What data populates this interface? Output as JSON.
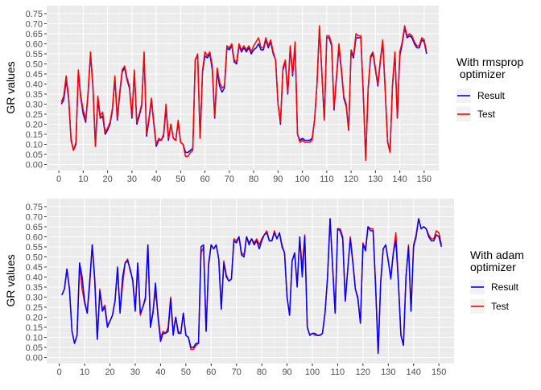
{
  "chart_data": [
    {
      "type": "line",
      "title": "",
      "xlabel": "",
      "ylabel": "GR values",
      "xlim": [
        -5,
        156
      ],
      "ylim": [
        -0.03,
        0.79
      ],
      "xticks": [
        0,
        10,
        20,
        30,
        40,
        50,
        60,
        70,
        80,
        90,
        100,
        110,
        120,
        130,
        140,
        150
      ],
      "yticks": [
        0,
        0.05,
        0.1,
        0.15,
        0.2,
        0.25,
        0.3,
        0.35,
        0.4,
        0.45,
        0.5,
        0.55,
        0.6,
        0.65,
        0.7,
        0.75
      ],
      "ytick_labels": [
        "0.00",
        "0.05",
        "0.10",
        "0.15",
        "0.20",
        "0.25",
        "0.30",
        "0.35",
        "0.40",
        "0.45",
        "0.50",
        "0.55",
        "0.60",
        "0.65",
        "0.70",
        "0.75"
      ],
      "grid": true,
      "legend": {
        "title": "With rmsprop\n optimizer",
        "position": "right"
      },
      "series": [
        {
          "name": "Result",
          "color": "#0000ff",
          "x_start": 1,
          "values": [
            0.3,
            0.32,
            0.42,
            0.33,
            0.12,
            0.07,
            0.1,
            0.46,
            0.33,
            0.25,
            0.21,
            0.35,
            0.55,
            0.38,
            0.09,
            0.32,
            0.23,
            0.24,
            0.15,
            0.17,
            0.2,
            0.27,
            0.43,
            0.22,
            0.35,
            0.46,
            0.48,
            0.42,
            0.38,
            0.23,
            0.46,
            0.2,
            0.24,
            0.29,
            0.55,
            0.14,
            0.22,
            0.32,
            0.2,
            0.09,
            0.12,
            0.12,
            0.14,
            0.28,
            0.12,
            0.2,
            0.13,
            0.12,
            0.21,
            0.11,
            0.1,
            0.06,
            0.06,
            0.07,
            0.08,
            0.52,
            0.54,
            0.13,
            0.46,
            0.54,
            0.53,
            0.55,
            0.47,
            0.23,
            0.46,
            0.39,
            0.36,
            0.38,
            0.58,
            0.57,
            0.59,
            0.51,
            0.5,
            0.59,
            0.56,
            0.58,
            0.56,
            0.58,
            0.55,
            0.57,
            0.58,
            0.6,
            0.57,
            0.57,
            0.62,
            0.58,
            0.61,
            0.55,
            0.52,
            0.3,
            0.2,
            0.47,
            0.51,
            0.35,
            0.58,
            0.44,
            0.6,
            0.15,
            0.12,
            0.13,
            0.12,
            0.12,
            0.12,
            0.13,
            0.22,
            0.4,
            0.68,
            0.45,
            0.22,
            0.63,
            0.63,
            0.59,
            0.27,
            0.43,
            0.58,
            0.47,
            0.33,
            0.29,
            0.17,
            0.56,
            0.53,
            0.63,
            0.63,
            0.63,
            0.35,
            0.03,
            0.37,
            0.53,
            0.55,
            0.47,
            0.39,
            0.51,
            0.61,
            0.37,
            0.11,
            0.07,
            0.39,
            0.55,
            0.23,
            0.54,
            0.6,
            0.68,
            0.63,
            0.64,
            0.63,
            0.6,
            0.58,
            0.58,
            0.62,
            0.61,
            0.55
          ]
        },
        {
          "name": "Test",
          "color": "#ff0000",
          "x_start": 1,
          "values": [
            0.31,
            0.34,
            0.44,
            0.34,
            0.13,
            0.07,
            0.11,
            0.47,
            0.34,
            0.27,
            0.22,
            0.36,
            0.56,
            0.39,
            0.09,
            0.34,
            0.24,
            0.26,
            0.16,
            0.18,
            0.21,
            0.28,
            0.44,
            0.23,
            0.36,
            0.47,
            0.49,
            0.43,
            0.39,
            0.24,
            0.47,
            0.21,
            0.25,
            0.3,
            0.56,
            0.15,
            0.23,
            0.33,
            0.21,
            0.1,
            0.13,
            0.12,
            0.15,
            0.3,
            0.13,
            0.2,
            0.13,
            0.12,
            0.22,
            0.11,
            0.1,
            0.04,
            0.04,
            0.06,
            0.07,
            0.52,
            0.55,
            0.13,
            0.47,
            0.56,
            0.54,
            0.56,
            0.49,
            0.24,
            0.48,
            0.41,
            0.38,
            0.39,
            0.59,
            0.58,
            0.6,
            0.52,
            0.51,
            0.6,
            0.57,
            0.59,
            0.57,
            0.59,
            0.56,
            0.59,
            0.61,
            0.63,
            0.58,
            0.58,
            0.63,
            0.59,
            0.62,
            0.56,
            0.52,
            0.3,
            0.21,
            0.48,
            0.52,
            0.36,
            0.59,
            0.45,
            0.61,
            0.15,
            0.11,
            0.12,
            0.11,
            0.11,
            0.11,
            0.12,
            0.22,
            0.4,
            0.69,
            0.46,
            0.22,
            0.64,
            0.64,
            0.6,
            0.28,
            0.44,
            0.6,
            0.48,
            0.34,
            0.3,
            0.17,
            0.57,
            0.54,
            0.65,
            0.64,
            0.64,
            0.36,
            0.02,
            0.38,
            0.54,
            0.56,
            0.48,
            0.4,
            0.52,
            0.62,
            0.38,
            0.11,
            0.06,
            0.4,
            0.56,
            0.23,
            0.56,
            0.61,
            0.69,
            0.64,
            0.65,
            0.64,
            0.61,
            0.59,
            0.59,
            0.63,
            0.62,
            0.56
          ]
        }
      ]
    },
    {
      "type": "line",
      "title": "",
      "xlabel": "",
      "ylabel": "GR values",
      "xlim": [
        -5,
        156
      ],
      "ylim": [
        -0.03,
        0.79
      ],
      "xticks": [
        0,
        10,
        20,
        30,
        40,
        50,
        60,
        70,
        80,
        90,
        100,
        110,
        120,
        130,
        140,
        150
      ],
      "yticks": [
        0,
        0.05,
        0.1,
        0.15,
        0.2,
        0.25,
        0.3,
        0.35,
        0.4,
        0.45,
        0.5,
        0.55,
        0.6,
        0.65,
        0.7,
        0.75
      ],
      "ytick_labels": [
        "0.00",
        "0.05",
        "0.10",
        "0.15",
        "0.20",
        "0.25",
        "0.30",
        "0.35",
        "0.40",
        "0.45",
        "0.50",
        "0.55",
        "0.60",
        "0.65",
        "0.70",
        "0.75"
      ],
      "grid": true,
      "legend": {
        "title": "With adam\noptimizer",
        "position": "right"
      },
      "series": [
        {
          "name": "Test",
          "color": "#ff0000",
          "x_start": 1,
          "values": [
            0.31,
            0.34,
            0.44,
            0.34,
            0.13,
            0.07,
            0.11,
            0.47,
            0.34,
            0.27,
            0.22,
            0.36,
            0.56,
            0.39,
            0.09,
            0.34,
            0.24,
            0.26,
            0.16,
            0.18,
            0.21,
            0.28,
            0.44,
            0.23,
            0.36,
            0.47,
            0.49,
            0.43,
            0.39,
            0.24,
            0.47,
            0.21,
            0.25,
            0.3,
            0.56,
            0.15,
            0.23,
            0.33,
            0.21,
            0.1,
            0.13,
            0.12,
            0.15,
            0.3,
            0.13,
            0.2,
            0.13,
            0.12,
            0.22,
            0.11,
            0.1,
            0.04,
            0.04,
            0.06,
            0.07,
            0.52,
            0.55,
            0.13,
            0.47,
            0.56,
            0.54,
            0.56,
            0.49,
            0.24,
            0.48,
            0.41,
            0.38,
            0.39,
            0.59,
            0.58,
            0.6,
            0.52,
            0.51,
            0.6,
            0.57,
            0.59,
            0.57,
            0.59,
            0.56,
            0.59,
            0.61,
            0.63,
            0.58,
            0.58,
            0.63,
            0.59,
            0.62,
            0.56,
            0.52,
            0.3,
            0.21,
            0.48,
            0.52,
            0.36,
            0.59,
            0.45,
            0.61,
            0.15,
            0.11,
            0.12,
            0.11,
            0.11,
            0.11,
            0.12,
            0.22,
            0.4,
            0.69,
            0.46,
            0.22,
            0.64,
            0.64,
            0.6,
            0.28,
            0.44,
            0.6,
            0.48,
            0.34,
            0.3,
            0.17,
            0.57,
            0.54,
            0.65,
            0.64,
            0.64,
            0.36,
            0.02,
            0.38,
            0.54,
            0.56,
            0.48,
            0.4,
            0.52,
            0.62,
            0.38,
            0.11,
            0.06,
            0.4,
            0.56,
            0.23,
            0.56,
            0.61,
            0.69,
            0.64,
            0.65,
            0.64,
            0.61,
            0.59,
            0.59,
            0.63,
            0.62,
            0.56
          ]
        },
        {
          "name": "Result",
          "color": "#0000ff",
          "x_start": 1,
          "values": [
            0.31,
            0.34,
            0.44,
            0.34,
            0.13,
            0.07,
            0.11,
            0.47,
            0.4,
            0.28,
            0.22,
            0.38,
            0.56,
            0.38,
            0.09,
            0.33,
            0.23,
            0.25,
            0.15,
            0.18,
            0.21,
            0.28,
            0.45,
            0.22,
            0.4,
            0.47,
            0.48,
            0.44,
            0.38,
            0.23,
            0.47,
            0.22,
            0.25,
            0.29,
            0.56,
            0.15,
            0.22,
            0.37,
            0.2,
            0.08,
            0.12,
            0.12,
            0.13,
            0.29,
            0.11,
            0.2,
            0.12,
            0.12,
            0.22,
            0.11,
            0.1,
            0.05,
            0.05,
            0.07,
            0.07,
            0.55,
            0.56,
            0.13,
            0.46,
            0.56,
            0.54,
            0.56,
            0.49,
            0.24,
            0.47,
            0.4,
            0.38,
            0.39,
            0.58,
            0.57,
            0.6,
            0.51,
            0.5,
            0.6,
            0.56,
            0.59,
            0.56,
            0.58,
            0.54,
            0.58,
            0.61,
            0.62,
            0.58,
            0.58,
            0.62,
            0.59,
            0.62,
            0.55,
            0.52,
            0.3,
            0.21,
            0.48,
            0.52,
            0.35,
            0.6,
            0.4,
            0.6,
            0.15,
            0.11,
            0.12,
            0.12,
            0.11,
            0.11,
            0.12,
            0.22,
            0.4,
            0.69,
            0.45,
            0.22,
            0.64,
            0.63,
            0.59,
            0.28,
            0.44,
            0.59,
            0.47,
            0.34,
            0.29,
            0.17,
            0.56,
            0.53,
            0.65,
            0.63,
            0.63,
            0.35,
            0.02,
            0.37,
            0.54,
            0.56,
            0.48,
            0.39,
            0.52,
            0.58,
            0.37,
            0.11,
            0.06,
            0.4,
            0.55,
            0.23,
            0.55,
            0.6,
            0.69,
            0.64,
            0.65,
            0.64,
            0.6,
            0.58,
            0.58,
            0.61,
            0.6,
            0.55
          ]
        }
      ]
    }
  ]
}
